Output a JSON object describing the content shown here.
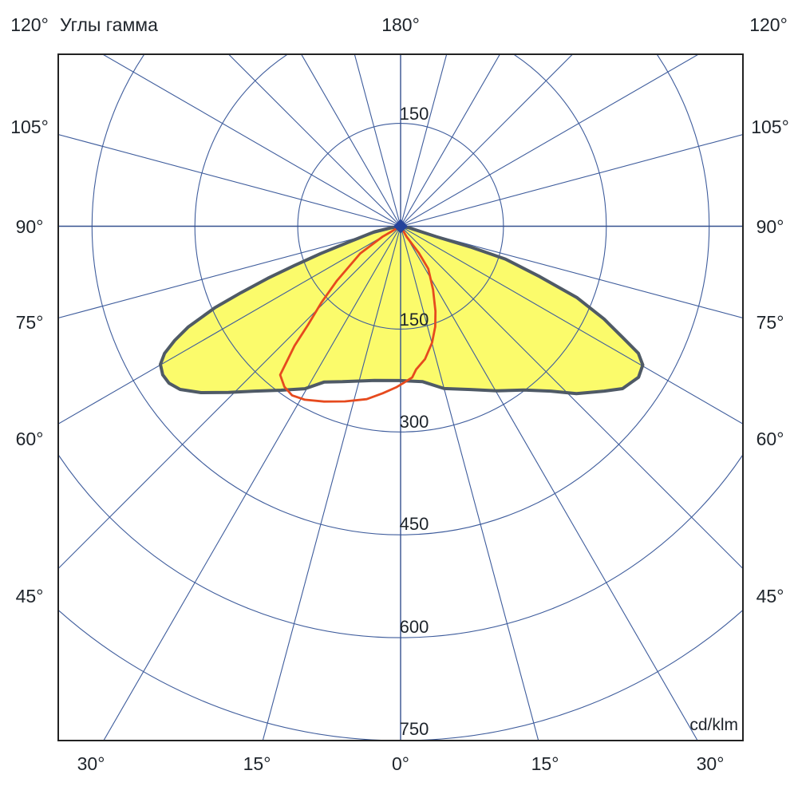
{
  "labels": {
    "title": "Углы гамма",
    "top": [
      "120°",
      "180°",
      "120°"
    ],
    "left": [
      "105°",
      "90°",
      "75°",
      "60°",
      "45°"
    ],
    "right": [
      "105°",
      "90°",
      "75°",
      "60°",
      "45°"
    ],
    "bottom": [
      "30°",
      "15°",
      "0°",
      "15°",
      "30°"
    ],
    "rings": [
      "150",
      "150",
      "300",
      "450",
      "600",
      "750"
    ],
    "unit": "cd/klm"
  },
  "colors": {
    "grid": "#3e5c9c",
    "border": "#222222",
    "yellow_fill": "#fbfb6b",
    "yellow_outline": "#4f5a66",
    "red_curve": "#e64a1e",
    "origin_marker": "#24439b",
    "text": "#1e242b"
  },
  "chart_data": {
    "type": "polar_photometric",
    "title": "Углы гамма",
    "unit": "cd/klm",
    "radial_axis": {
      "ticks": [
        150,
        300,
        450,
        600,
        750
      ],
      "max": 750,
      "step": 150
    },
    "angular_axis": {
      "step_deg": 15,
      "top_label_deg": 180,
      "side_labels_deg": [
        105,
        90,
        75,
        60,
        45
      ],
      "corner_label_deg": 120,
      "bottom_labels_deg": [
        30,
        15,
        0,
        15,
        30
      ]
    },
    "series": [
      {
        "id": "yellow-lobe",
        "style": "filled",
        "fill": "#fbfb6b",
        "stroke": "#4f5a66",
        "points_gamma_value": [
          [
            -90,
            0
          ],
          [
            -80,
            15
          ],
          [
            -77.9,
            39
          ],
          [
            -73,
            80
          ],
          [
            -71.1,
            123
          ],
          [
            -69.7,
            165
          ],
          [
            -68.6,
            208
          ],
          [
            -67.4,
            252
          ],
          [
            -66.3,
            296
          ],
          [
            -64.6,
            343
          ],
          [
            -63.2,
            369
          ],
          [
            -61.7,
            391
          ],
          [
            -60.1,
            404
          ],
          [
            -58,
            409
          ],
          [
            -55.9,
            408
          ],
          [
            -53.5,
            400
          ],
          [
            -50.2,
            379
          ],
          [
            -46,
            349
          ],
          [
            -41.5,
            321
          ],
          [
            -36.1,
            296
          ],
          [
            -30.5,
            275
          ],
          [
            -26.1,
            253
          ],
          [
            -20.5,
            242
          ],
          [
            -9.6,
            228
          ],
          [
            0,
            225
          ],
          [
            8.1,
            229
          ],
          [
            15,
            245
          ],
          [
            23.2,
            259
          ],
          [
            30.3,
            278
          ],
          [
            37,
            299
          ],
          [
            42.3,
            325
          ],
          [
            46.4,
            354
          ],
          [
            51,
            382
          ],
          [
            53.8,
            401
          ],
          [
            57.6,
            411
          ],
          [
            60.2,
            407
          ],
          [
            61.9,
            393
          ],
          [
            63.4,
            362
          ],
          [
            65.5,
            326
          ],
          [
            68,
            277
          ],
          [
            70.1,
            216
          ],
          [
            72.6,
            160
          ],
          [
            73.5,
            106
          ],
          [
            73.7,
            54
          ],
          [
            80,
            12
          ],
          [
            90,
            0
          ]
        ]
      },
      {
        "id": "red-curve",
        "style": "line",
        "stroke": "#e64a1e",
        "points_gamma_value": [
          [
            -60,
            0
          ],
          [
            -60,
            30
          ],
          [
            -56,
            71
          ],
          [
            -49.5,
            122
          ],
          [
            -46,
            161
          ],
          [
            -43.2,
            197
          ],
          [
            -41.6,
            233
          ],
          [
            -40.1,
            257
          ],
          [
            -39,
            279
          ],
          [
            -35.9,
            289
          ],
          [
            -32.7,
            293
          ],
          [
            -28.9,
            289
          ],
          [
            -23.6,
            279
          ],
          [
            -17.6,
            268
          ],
          [
            -11.1,
            257
          ],
          [
            -6.1,
            245
          ],
          [
            -1.6,
            235
          ],
          [
            1.3,
            228
          ],
          [
            4.4,
            221
          ],
          [
            6.2,
            210
          ],
          [
            10.4,
            197
          ],
          [
            15.1,
            176
          ],
          [
            19,
            155
          ],
          [
            22.3,
            134
          ],
          [
            27.1,
            104
          ],
          [
            33.1,
            74
          ],
          [
            34.3,
            47
          ],
          [
            30,
            18
          ],
          [
            30,
            0
          ]
        ]
      }
    ]
  }
}
